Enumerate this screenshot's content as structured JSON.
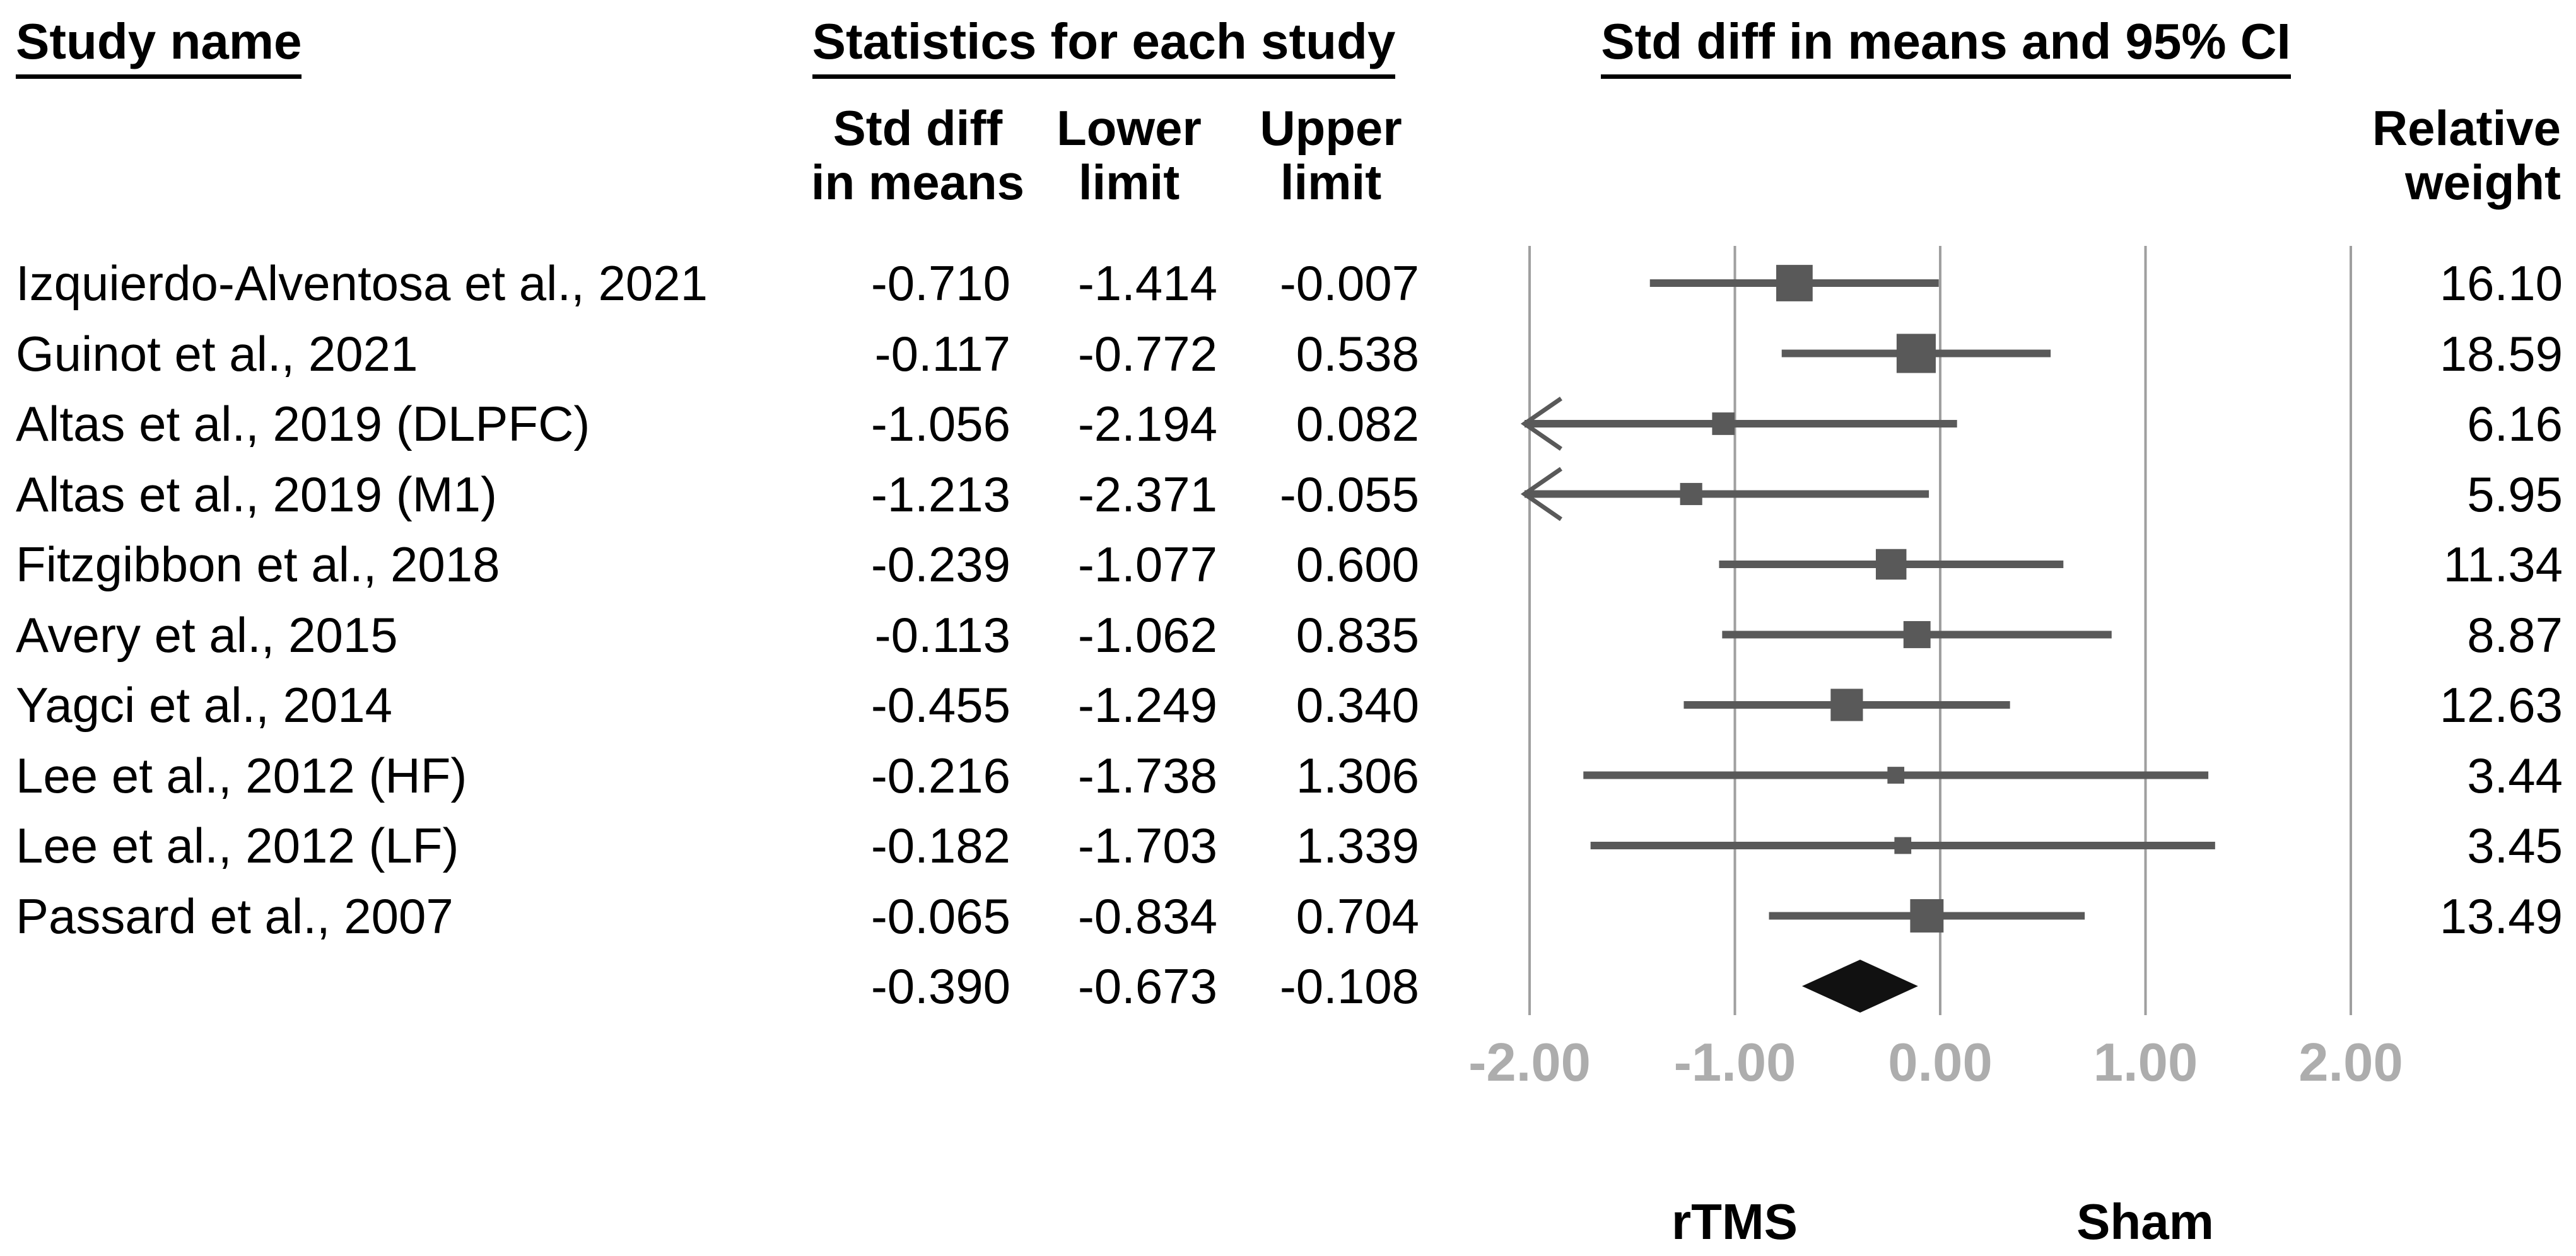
{
  "figure": {
    "header_study": "Study name",
    "header_statistics": "Statistics for each study",
    "header_plot": "Std diff in means and 95% CI"
  },
  "columns": {
    "std_diff_line1": "Std diff",
    "std_diff_line2": "in means",
    "lower_line1": "Lower",
    "lower_line2": "limit",
    "upper_line1": "Upper",
    "upper_line2": "limit",
    "weight_line1": "Relative",
    "weight_line2": "weight"
  },
  "rows": [
    {
      "name": "Izquierdo-Alventosa et al., 2021",
      "std_diff": "-0.710",
      "lower": "-1.414",
      "upper": "-0.007",
      "weight": "16.10"
    },
    {
      "name": "Guinot et al., 2021",
      "std_diff": "-0.117",
      "lower": "-0.772",
      "upper": "0.538",
      "weight": "18.59"
    },
    {
      "name": "Altas et al., 2019 (DLPFC)",
      "std_diff": "-1.056",
      "lower": "-2.194",
      "upper": "0.082",
      "weight": "6.16"
    },
    {
      "name": "Altas et al., 2019 (M1)",
      "std_diff": "-1.213",
      "lower": "-2.371",
      "upper": "-0.055",
      "weight": "5.95"
    },
    {
      "name": "Fitzgibbon et al., 2018",
      "std_diff": "-0.239",
      "lower": "-1.077",
      "upper": "0.600",
      "weight": "11.34"
    },
    {
      "name": "Avery et al., 2015",
      "std_diff": "-0.113",
      "lower": "-1.062",
      "upper": "0.835",
      "weight": "8.87"
    },
    {
      "name": "Yagci et al., 2014",
      "std_diff": "-0.455",
      "lower": "-1.249",
      "upper": "0.340",
      "weight": "12.63"
    },
    {
      "name": "Lee et al., 2012 (HF)",
      "std_diff": "-0.216",
      "lower": "-1.738",
      "upper": "1.306",
      "weight": "3.44"
    },
    {
      "name": "Lee et al., 2012 (LF)",
      "std_diff": "-0.182",
      "lower": "-1.703",
      "upper": "1.339",
      "weight": "3.45"
    },
    {
      "name": "Passard et al., 2007",
      "std_diff": "-0.065",
      "lower": "-0.834",
      "upper": "0.704",
      "weight": "13.49"
    }
  ],
  "summary_row": {
    "std_diff": "-0.390",
    "lower": "-0.673",
    "upper": "-0.108"
  },
  "group_labels": {
    "left": "rTMS",
    "right": "Sham"
  },
  "chart_data": {
    "type": "forest",
    "title": "Std diff in means and 95% CI",
    "xlim": [
      -2.0,
      2.0
    ],
    "x_ticks": [
      -2.0,
      -1.0,
      0.0,
      1.0,
      2.0
    ],
    "x_tick_labels": [
      "-2.00",
      "-1.00",
      "0.00",
      "1.00",
      "2.00"
    ],
    "grid": true,
    "studies": [
      {
        "name": "Izquierdo-Alventosa et al., 2021",
        "mean": -0.71,
        "lower": -1.414,
        "upper": -0.007,
        "weight": 16.1
      },
      {
        "name": "Guinot et al., 2021",
        "mean": -0.117,
        "lower": -0.772,
        "upper": 0.538,
        "weight": 18.59
      },
      {
        "name": "Altas et al., 2019 (DLPFC)",
        "mean": -1.056,
        "lower": -2.194,
        "upper": 0.082,
        "weight": 6.16
      },
      {
        "name": "Altas et al., 2019 (M1)",
        "mean": -1.213,
        "lower": -2.371,
        "upper": -0.055,
        "weight": 5.95
      },
      {
        "name": "Fitzgibbon et al., 2018",
        "mean": -0.239,
        "lower": -1.077,
        "upper": 0.6,
        "weight": 11.34
      },
      {
        "name": "Avery et al., 2015",
        "mean": -0.113,
        "lower": -1.062,
        "upper": 0.835,
        "weight": 8.87
      },
      {
        "name": "Yagci et al., 2014",
        "mean": -0.455,
        "lower": -1.249,
        "upper": 0.34,
        "weight": 12.63
      },
      {
        "name": "Lee et al., 2012 (HF)",
        "mean": -0.216,
        "lower": -1.738,
        "upper": 1.306,
        "weight": 3.44
      },
      {
        "name": "Lee et al., 2012 (LF)",
        "mean": -0.182,
        "lower": -1.703,
        "upper": 1.339,
        "weight": 3.45
      },
      {
        "name": "Passard et al., 2007",
        "mean": -0.065,
        "lower": -0.834,
        "upper": 0.704,
        "weight": 13.49
      }
    ],
    "summary": {
      "mean": -0.39,
      "lower": -0.673,
      "upper": -0.108
    },
    "favours_left_label": "rTMS",
    "favours_right_label": "Sham",
    "colors": {
      "marker": "#595959",
      "ci_line": "#595959",
      "gridline": "#9f9f9f",
      "tick_label": "#adadad",
      "diamond": "#111111",
      "text": "#000000"
    }
  }
}
